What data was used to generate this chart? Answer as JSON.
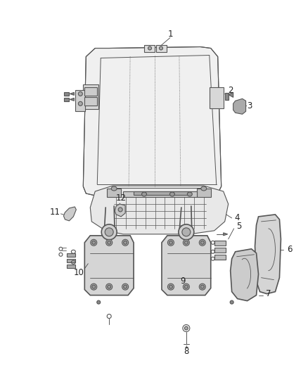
{
  "background_color": "#ffffff",
  "fig_width": 4.38,
  "fig_height": 5.33,
  "dpi": 100,
  "line_color": "#555555",
  "label_color": "#222222",
  "label_fontsize": 8.5
}
